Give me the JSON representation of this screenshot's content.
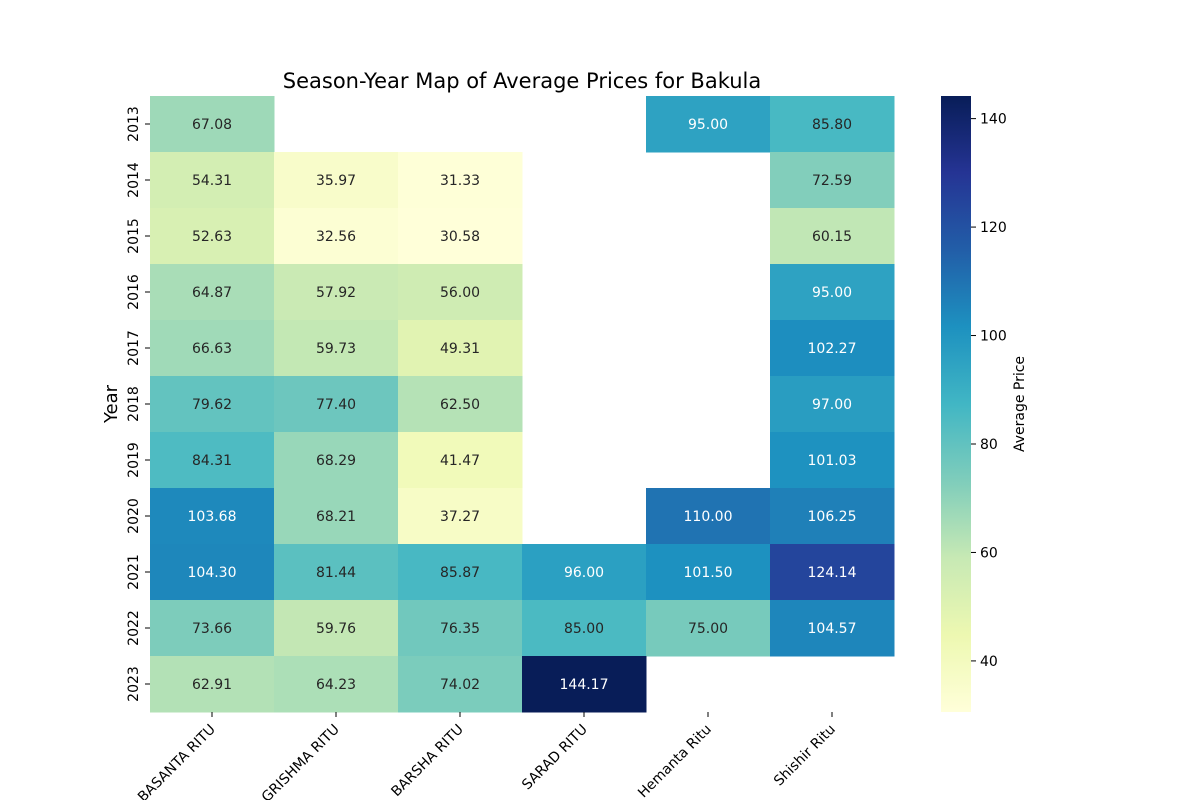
{
  "chart_data": {
    "type": "heatmap",
    "title": "Season-Year Map of Average Prices for Bakula",
    "xlabel": "",
    "ylabel": "Year",
    "colorbar_label": "Average Price",
    "colorbar_ticks": [
      40,
      60,
      80,
      100,
      120,
      140
    ],
    "color_range": [
      30.58,
      144.17
    ],
    "colormap": "YlGnBu",
    "x_categories": [
      "BASANTA RITU",
      "GRISHMA RITU",
      "BARSHA RITU",
      "SARAD RITU",
      "Hemanta Ritu",
      "Shishir Ritu"
    ],
    "y_categories": [
      "2013",
      "2014",
      "2015",
      "2016",
      "2017",
      "2018",
      "2019",
      "2020",
      "2021",
      "2022",
      "2023"
    ],
    "values": [
      [
        67.08,
        null,
        null,
        null,
        95.0,
        85.8
      ],
      [
        54.31,
        35.97,
        31.33,
        null,
        null,
        72.59
      ],
      [
        52.63,
        32.56,
        30.58,
        null,
        null,
        60.15
      ],
      [
        64.87,
        57.92,
        56.0,
        null,
        null,
        95.0
      ],
      [
        66.63,
        59.73,
        49.31,
        null,
        null,
        102.27
      ],
      [
        79.62,
        77.4,
        62.5,
        null,
        null,
        97.0
      ],
      [
        84.31,
        68.29,
        41.47,
        null,
        null,
        101.03
      ],
      [
        103.68,
        68.21,
        37.27,
        null,
        110.0,
        106.25
      ],
      [
        104.3,
        81.44,
        85.87,
        96.0,
        101.5,
        124.14
      ],
      [
        73.66,
        59.76,
        76.35,
        85.0,
        75.0,
        104.57
      ],
      [
        62.91,
        64.23,
        74.02,
        144.17,
        null,
        null
      ]
    ]
  }
}
